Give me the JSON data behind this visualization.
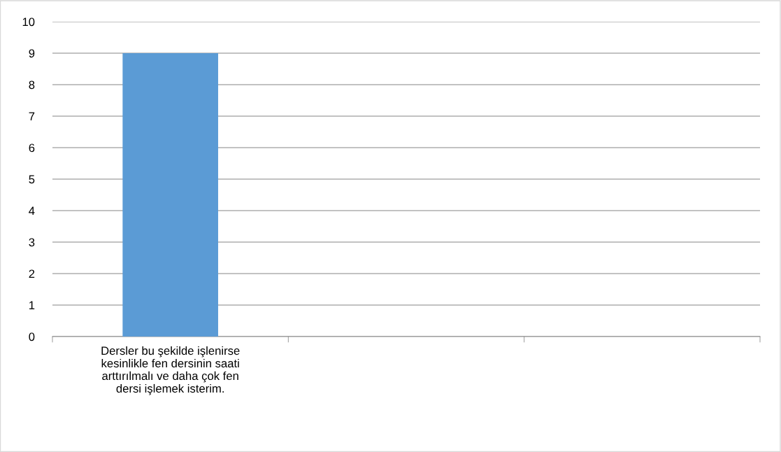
{
  "chart_data": {
    "type": "bar",
    "categories": [
      "Dersler bu şekilde işlenirse\nkesinlikle fen dersinin saati\narttırılmalı ve daha çok fen\ndersi işlemek isterim.",
      null,
      null
    ],
    "values": [
      9,
      null,
      null
    ],
    "color": "#5b9bd5",
    "ylim": [
      0,
      10
    ],
    "yticks": [
      0,
      1,
      2,
      3,
      4,
      5,
      6,
      7,
      8,
      9,
      10
    ],
    "grid": "y",
    "legend": false
  }
}
